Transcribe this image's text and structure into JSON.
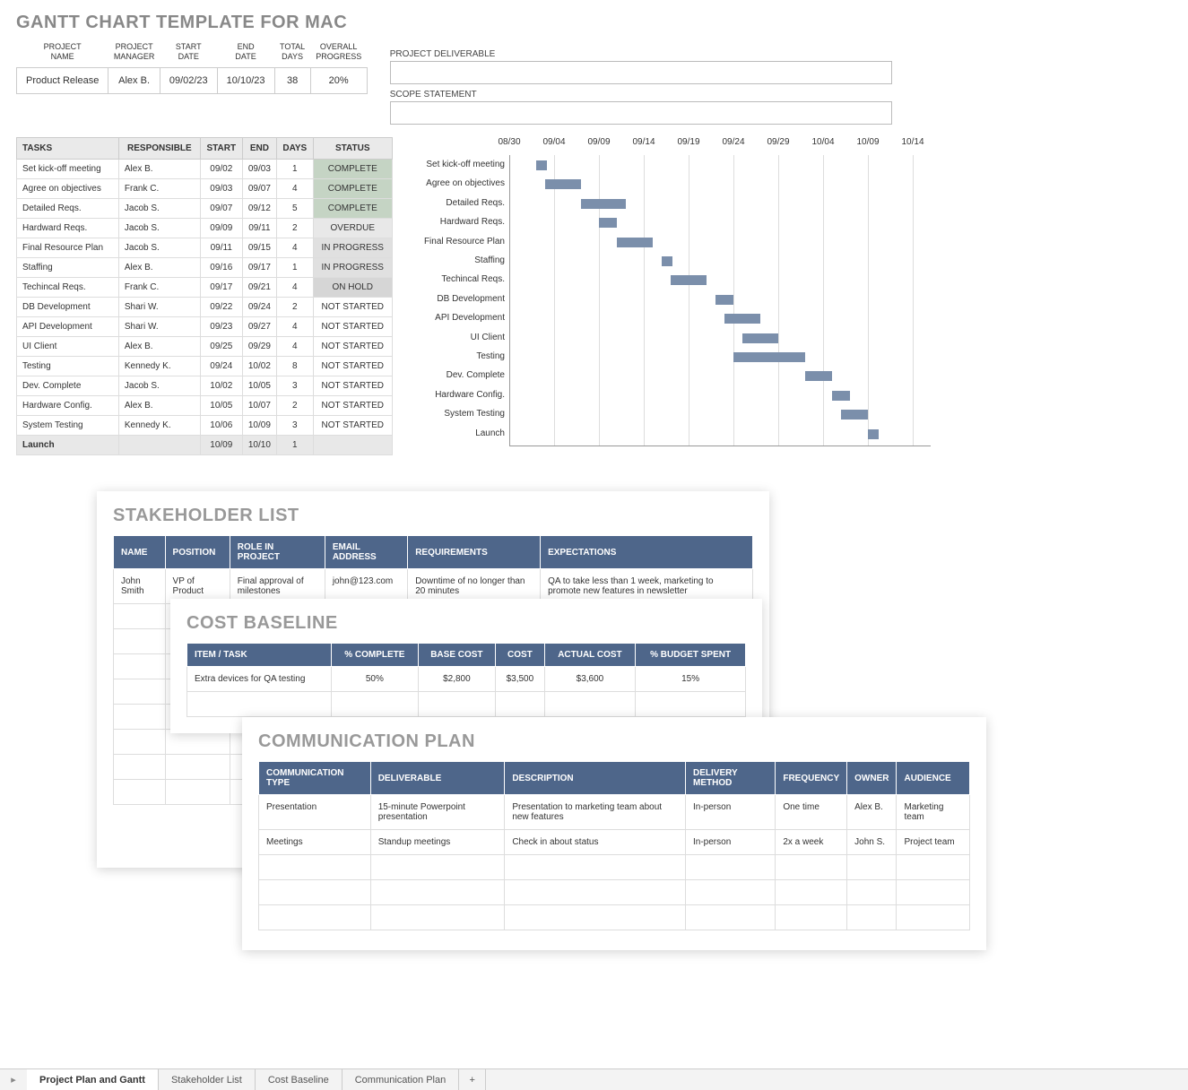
{
  "title": "GANTT CHART TEMPLATE FOR MAC",
  "info": {
    "headers": [
      "PROJECT\nNAME",
      "PROJECT\nMANAGER",
      "START\nDATE",
      "END\nDATE",
      "TOTAL\nDAYS",
      "OVERALL\nPROGRESS"
    ],
    "row": [
      "Product Release",
      "Alex B.",
      "09/02/23",
      "10/10/23",
      "38",
      "20%"
    ]
  },
  "deliverable_label": "PROJECT DELIVERABLE",
  "scope_label": "SCOPE STATEMENT",
  "task_headers": [
    "TASKS",
    "RESPONSIBLE",
    "START",
    "END",
    "DAYS",
    "STATUS"
  ],
  "tasks": [
    {
      "name": "Set kick-off meeting",
      "resp": "Alex B.",
      "start": "09/02",
      "end": "09/03",
      "days": "1",
      "status": "COMPLETE",
      "cls": "status-complete"
    },
    {
      "name": "Agree on objectives",
      "resp": "Frank C.",
      "start": "09/03",
      "end": "09/07",
      "days": "4",
      "status": "COMPLETE",
      "cls": "status-complete"
    },
    {
      "name": "Detailed Reqs.",
      "resp": "Jacob S.",
      "start": "09/07",
      "end": "09/12",
      "days": "5",
      "status": "COMPLETE",
      "cls": "status-complete"
    },
    {
      "name": "Hardward Reqs.",
      "resp": "Jacob S.",
      "start": "09/09",
      "end": "09/11",
      "days": "2",
      "status": "OVERDUE",
      "cls": "status-overdue"
    },
    {
      "name": "Final Resource Plan",
      "resp": "Jacob S.",
      "start": "09/11",
      "end": "09/15",
      "days": "4",
      "status": "IN PROGRESS",
      "cls": "status-progress"
    },
    {
      "name": "Staffing",
      "resp": "Alex B.",
      "start": "09/16",
      "end": "09/17",
      "days": "1",
      "status": "IN PROGRESS",
      "cls": "status-progress"
    },
    {
      "name": "Techincal Reqs.",
      "resp": "Frank C.",
      "start": "09/17",
      "end": "09/21",
      "days": "4",
      "status": "ON HOLD",
      "cls": "status-hold"
    },
    {
      "name": "DB Development",
      "resp": "Shari W.",
      "start": "09/22",
      "end": "09/24",
      "days": "2",
      "status": "NOT STARTED",
      "cls": ""
    },
    {
      "name": "API Development",
      "resp": "Shari W.",
      "start": "09/23",
      "end": "09/27",
      "days": "4",
      "status": "NOT STARTED",
      "cls": ""
    },
    {
      "name": "UI Client",
      "resp": "Alex B.",
      "start": "09/25",
      "end": "09/29",
      "days": "4",
      "status": "NOT STARTED",
      "cls": ""
    },
    {
      "name": "Testing",
      "resp": "Kennedy K.",
      "start": "09/24",
      "end": "10/02",
      "days": "8",
      "status": "NOT STARTED",
      "cls": ""
    },
    {
      "name": "Dev. Complete",
      "resp": "Jacob S.",
      "start": "10/02",
      "end": "10/05",
      "days": "3",
      "status": "NOT STARTED",
      "cls": ""
    },
    {
      "name": "Hardware Config.",
      "resp": "Alex B.",
      "start": "10/05",
      "end": "10/07",
      "days": "2",
      "status": "NOT STARTED",
      "cls": ""
    },
    {
      "name": "System Testing",
      "resp": "Kennedy K.",
      "start": "10/06",
      "end": "10/09",
      "days": "3",
      "status": "NOT STARTED",
      "cls": ""
    },
    {
      "name": "Launch",
      "resp": "",
      "start": "10/09",
      "end": "10/10",
      "days": "1",
      "status": "",
      "cls": "",
      "launch": true
    }
  ],
  "gantt": {
    "dates": [
      "08/30",
      "09/04",
      "09/09",
      "09/14",
      "09/19",
      "09/24",
      "09/29",
      "10/04",
      "10/09",
      "10/14"
    ],
    "start_day": 0,
    "span_days": 45,
    "bar_color": "#7b8fab",
    "grid_color": "#dddddd",
    "row_height": 21.4,
    "bars": [
      {
        "label": "Set kick-off meeting",
        "offset": 3,
        "len": 1.2
      },
      {
        "label": "Agree on objectives",
        "offset": 4,
        "len": 4
      },
      {
        "label": "Detailed Reqs.",
        "offset": 8,
        "len": 5
      },
      {
        "label": "Hardward Reqs.",
        "offset": 10,
        "len": 2
      },
      {
        "label": "Final Resource Plan",
        "offset": 12,
        "len": 4
      },
      {
        "label": "Staffing",
        "offset": 17,
        "len": 1.2
      },
      {
        "label": "Techincal Reqs.",
        "offset": 18,
        "len": 4
      },
      {
        "label": "DB Development",
        "offset": 23,
        "len": 2
      },
      {
        "label": "API Development",
        "offset": 24,
        "len": 4
      },
      {
        "label": "UI Client",
        "offset": 26,
        "len": 4
      },
      {
        "label": "Testing",
        "offset": 25,
        "len": 8
      },
      {
        "label": "Dev. Complete",
        "offset": 33,
        "len": 3
      },
      {
        "label": "Hardware Config.",
        "offset": 36,
        "len": 2
      },
      {
        "label": "System Testing",
        "offset": 37,
        "len": 3
      },
      {
        "label": "Launch",
        "offset": 40,
        "len": 1.2
      }
    ]
  },
  "stakeholder": {
    "title": "STAKEHOLDER LIST",
    "headers": [
      "NAME",
      "POSITION",
      "ROLE IN PROJECT",
      "EMAIL ADDRESS",
      "REQUIREMENTS",
      "EXPECTATIONS"
    ],
    "rows": [
      [
        "John Smith",
        "VP of Product",
        "Final approval of milestones",
        "john@123.com",
        "Downtime of no longer than 20 minutes",
        "QA to take less than 1 week, marketing to promote new features in newsletter"
      ]
    ],
    "empty_rows": 8
  },
  "cost": {
    "title": "COST BASELINE",
    "headers": [
      "ITEM / TASK",
      "% COMPLETE",
      "BASE COST",
      "COST",
      "ACTUAL COST",
      "% BUDGET SPENT"
    ],
    "rows": [
      [
        "Extra devices for QA testing",
        "50%",
        "$2,800",
        "$3,500",
        "$3,600",
        "15%"
      ]
    ],
    "empty_rows": 1
  },
  "comm": {
    "title": "COMMUNICATION PLAN",
    "headers": [
      "COMMUNICATION TYPE",
      "DELIVERABLE",
      "DESCRIPTION",
      "DELIVERY METHOD",
      "FREQUENCY",
      "OWNER",
      "AUDIENCE"
    ],
    "rows": [
      [
        "Presentation",
        "15-minute Powerpoint presentation",
        "Presentation to marketing team about new features",
        "In-person",
        "One time",
        "Alex B.",
        "Marketing team"
      ],
      [
        "Meetings",
        "Standup meetings",
        "Check in about status",
        "In-person",
        "2x a week",
        "John S.",
        "Project team"
      ]
    ],
    "empty_rows": 3
  },
  "tabs": [
    "Project Plan and Gantt",
    "Stakeholder List",
    "Cost Baseline",
    "Communication Plan"
  ],
  "active_tab": 0
}
